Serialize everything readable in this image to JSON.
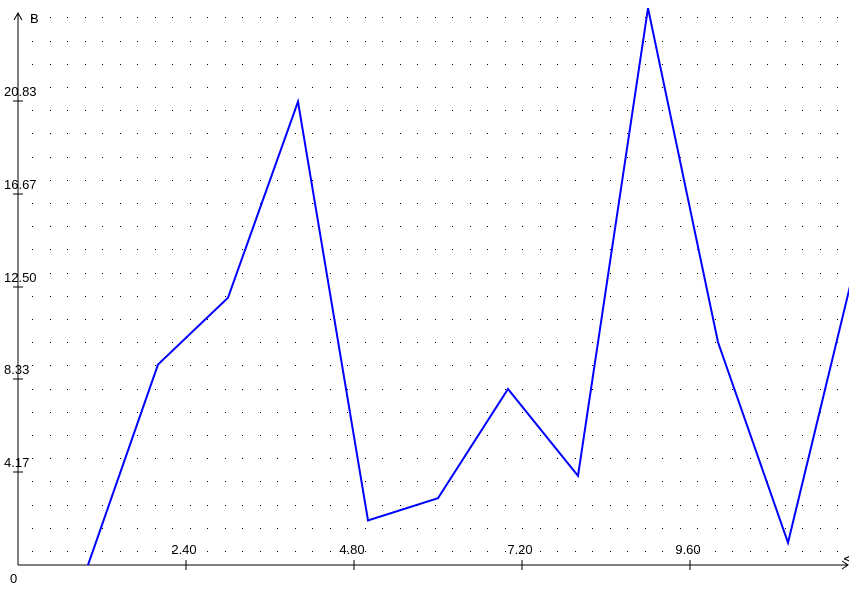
{
  "chart_data": {
    "type": "line",
    "ylabel": "B",
    "xlabel": "V",
    "origin_label": "0",
    "xlim": [
      0,
      12
    ],
    "ylim": [
      0,
      25.5
    ],
    "x_ticks": [
      {
        "value": 2.4,
        "label": "2.40"
      },
      {
        "value": 4.8,
        "label": "4.80"
      },
      {
        "value": 7.2,
        "label": "7.20"
      },
      {
        "value": 9.6,
        "label": "9.60"
      }
    ],
    "y_ticks": [
      {
        "value": 4.17,
        "label": "4.17"
      },
      {
        "value": 8.33,
        "label": "8.33"
      },
      {
        "value": 12.5,
        "label": "12.50"
      },
      {
        "value": 16.67,
        "label": "16.67"
      },
      {
        "value": 20.83,
        "label": "20.83"
      }
    ],
    "grid": "dotted",
    "series": [
      {
        "color": "#0000ff",
        "x": [
          1,
          2,
          3,
          4,
          5,
          6,
          7,
          8,
          9,
          10,
          11,
          12
        ],
        "values": [
          0,
          9.0,
          12.0,
          20.8,
          2.0,
          3.0,
          7.9,
          4.0,
          25.0,
          10.0,
          1.0,
          14.0
        ]
      }
    ]
  }
}
